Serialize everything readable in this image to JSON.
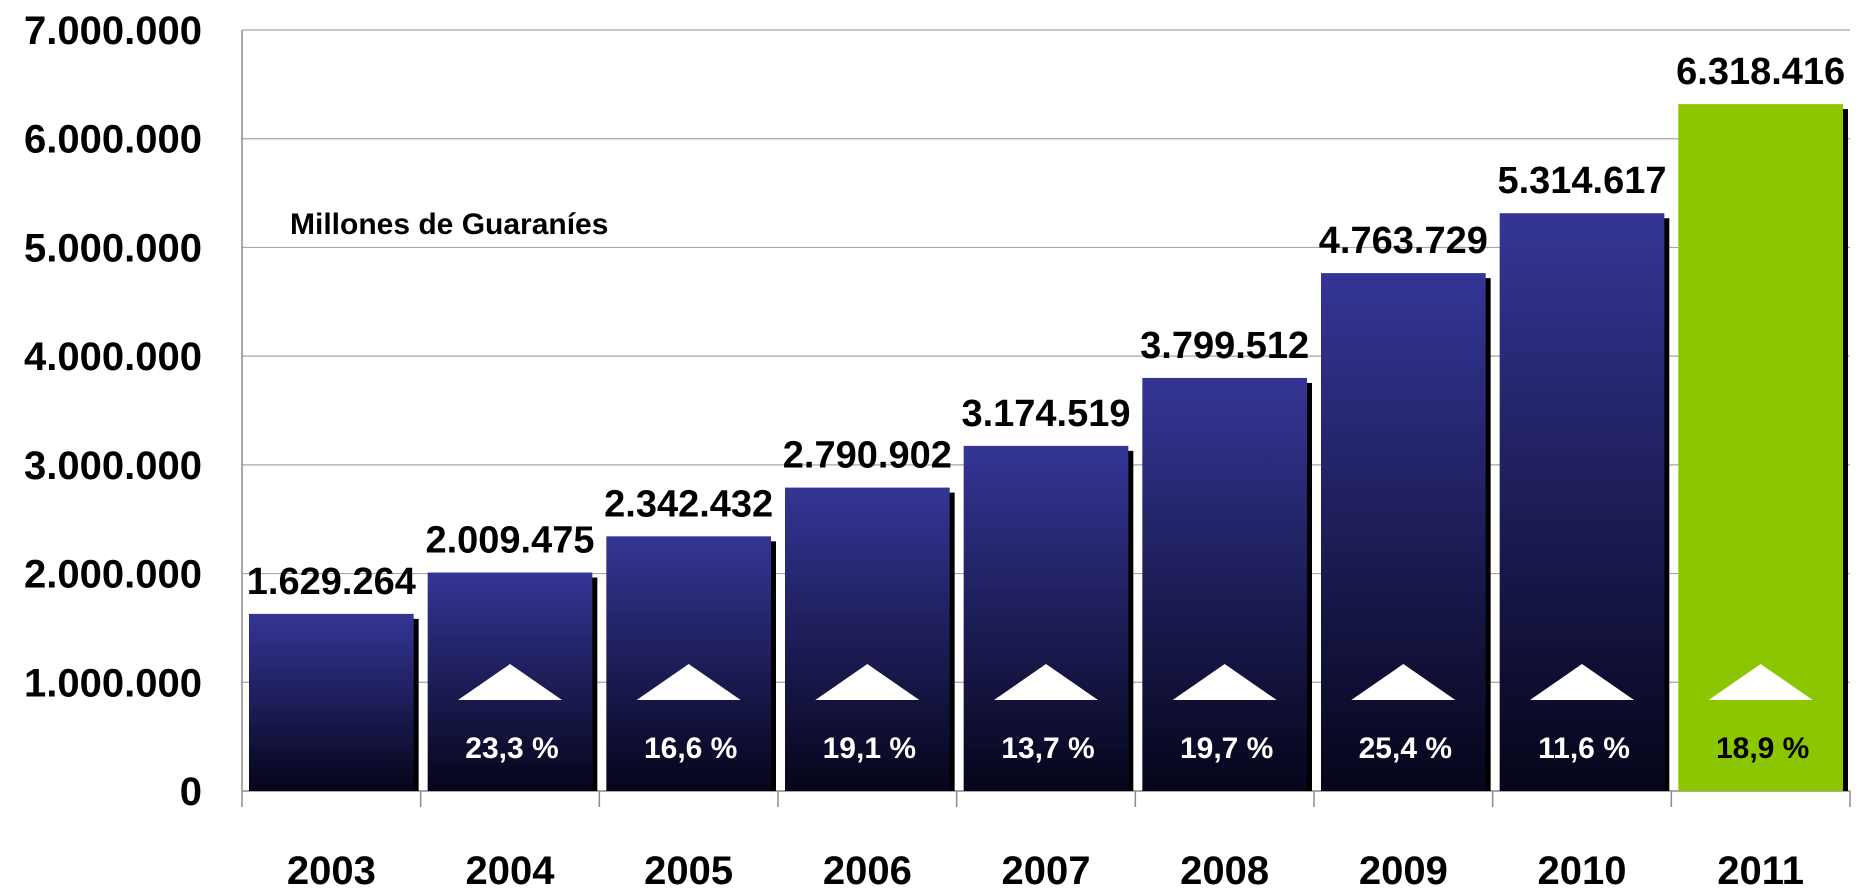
{
  "chart_data": {
    "type": "bar",
    "title": "",
    "unit_label": "Millones de Guaraníes",
    "xlabel": "",
    "ylabel": "",
    "ylim": [
      0,
      7000000
    ],
    "y_ticks": [
      0,
      1000000,
      2000000,
      3000000,
      4000000,
      5000000,
      6000000,
      7000000
    ],
    "y_tick_labels": [
      "0",
      "1.000.000",
      "2.000.000",
      "3.000.000",
      "4.000.000",
      "5.000.000",
      "6.000.000",
      "7.000.000"
    ],
    "grid": true,
    "categories": [
      "2003",
      "2004",
      "2005",
      "2006",
      "2007",
      "2008",
      "2009",
      "2010",
      "2011"
    ],
    "values": [
      1629264,
      2009475,
      2342432,
      2790902,
      3174519,
      3799512,
      4763729,
      5314617,
      6318416
    ],
    "value_labels": [
      "1.629.264",
      "2.009.475",
      "2.342.432",
      "2.790.902",
      "3.174.519",
      "3.799.512",
      "4.763.729",
      "5.314.617",
      "6.318.416"
    ],
    "growth_labels": [
      "",
      "23,3 %",
      "16,6 %",
      "19,1 %",
      "13,7 %",
      "19,7 %",
      "25,4 %",
      "11,6 %",
      "18,9 %"
    ],
    "bar_color": "#353596",
    "bar_color_dark": "#05051a",
    "highlight_color": "#8cc600",
    "highlight_index": 8,
    "growth_text_color": "#ffffff",
    "highlight_text_color": "#000000"
  }
}
